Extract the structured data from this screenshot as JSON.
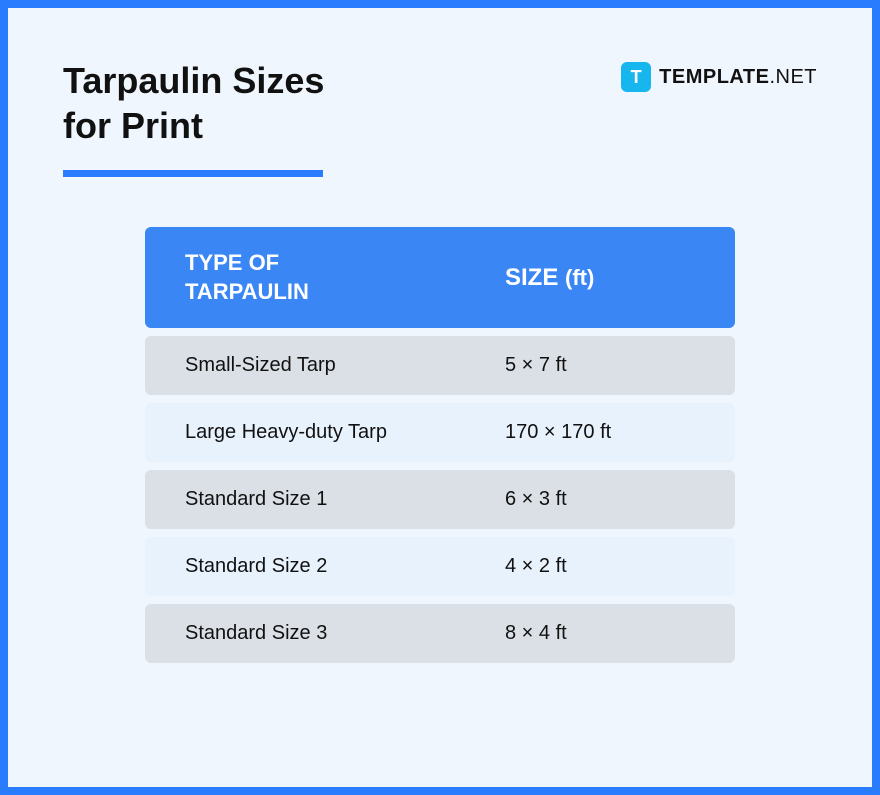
{
  "frame": {
    "border_color": "#2a7cff",
    "background_color": "#f0f6fd"
  },
  "brand": {
    "icon_letter": "T",
    "icon_bg": "#17b6ef",
    "name_bold": "TEMPLATE",
    "name_light": ".NET"
  },
  "title": {
    "line1": "Tarpaulin Sizes",
    "line2": "for Print",
    "underline_color": "#2a7cff"
  },
  "table": {
    "type": "table",
    "header_bg": "#3a86f5",
    "header_text_color": "#ffffff",
    "row_bg_gray": "#dbe0e7",
    "row_bg_blue": "#e8f2fd",
    "row_text_color": "#111111",
    "border_radius": 6,
    "columns": {
      "type_label_l1": "TYPE OF",
      "type_label_l2": "TARPAULIN",
      "size_label": "SIZE",
      "size_unit": "(ft)"
    },
    "rows": [
      {
        "type": "Small-Sized Tarp",
        "size": "5 × 7 ft",
        "variant": "gray"
      },
      {
        "type": "Large Heavy-duty Tarp",
        "size": "170 × 170 ft",
        "variant": "blue"
      },
      {
        "type": "Standard Size 1",
        "size": "6 × 3 ft",
        "variant": "gray"
      },
      {
        "type": "Standard Size 2",
        "size": "4 × 2 ft",
        "variant": "blue"
      },
      {
        "type": "Standard Size 3",
        "size": "8 × 4 ft",
        "variant": "gray"
      }
    ]
  }
}
